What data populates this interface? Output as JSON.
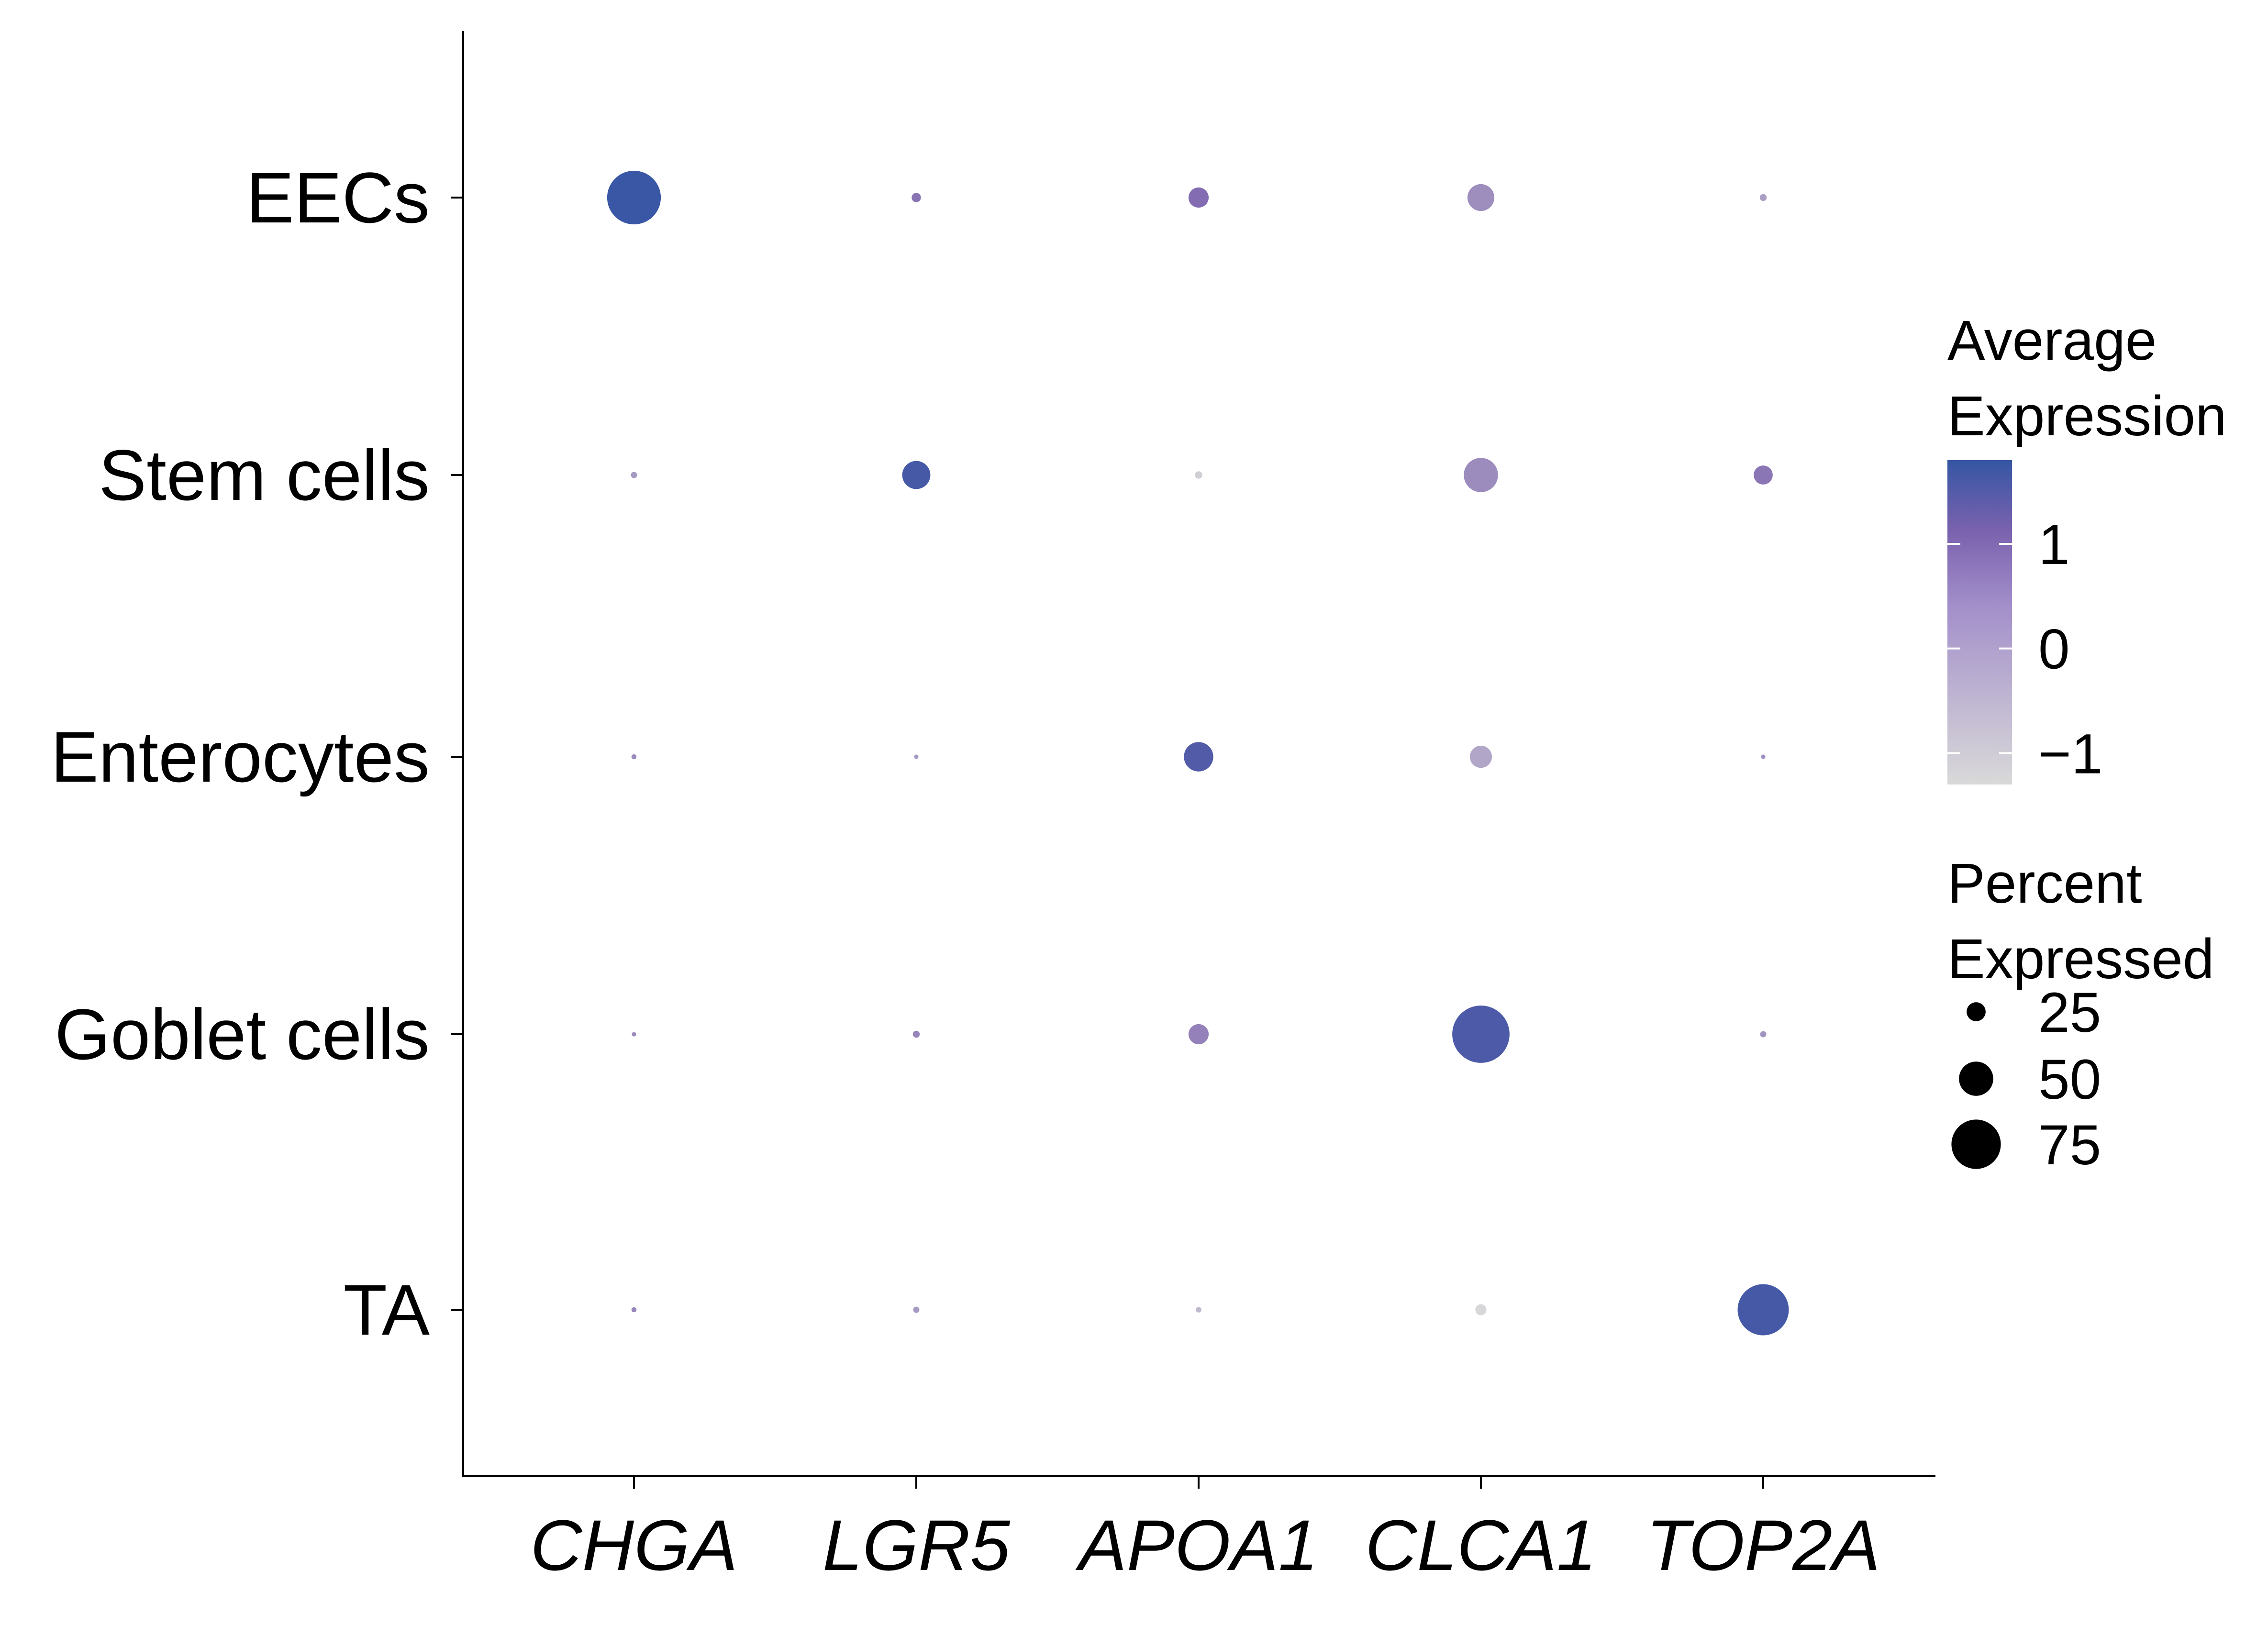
{
  "chart_data": {
    "type": "dotplot",
    "title": "",
    "xlabel": "",
    "ylabel": "",
    "categories_x": [
      "CHGA",
      "LGR5",
      "APOA1",
      "CLCA1",
      "TOP2A"
    ],
    "categories_y": [
      "EECs",
      "Stem cells",
      "Enterocytes",
      "Goblet cells",
      "TA"
    ],
    "color_legend": {
      "title_lines": [
        "Average",
        "Expression"
      ],
      "range": [
        -1.3,
        1.8
      ],
      "ticks": [
        {
          "value": 1,
          "label": "1"
        },
        {
          "value": 0,
          "label": "0"
        },
        {
          "value": -1,
          "label": "−1"
        }
      ],
      "colors": {
        "low": "#d9d9d9",
        "mid": "#7b62ae",
        "high": "#3556a4"
      }
    },
    "size_legend": {
      "title_lines": [
        "Percent",
        "Expressed"
      ],
      "entries": [
        {
          "value": 25,
          "label": "25"
        },
        {
          "value": 50,
          "label": "50"
        },
        {
          "value": 75,
          "label": "75"
        }
      ]
    },
    "points": [
      {
        "y": "EECs",
        "x": "CHGA",
        "pct": 82,
        "avg": 1.75
      },
      {
        "y": "EECs",
        "x": "LGR5",
        "pct": 9,
        "avg": 0.6
      },
      {
        "y": "EECs",
        "x": "APOA1",
        "pct": 27,
        "avg": 0.75
      },
      {
        "y": "EECs",
        "x": "CLCA1",
        "pct": 38,
        "avg": 0.1
      },
      {
        "y": "EECs",
        "x": "TOP2A",
        "pct": 5,
        "avg": -0.2
      },
      {
        "y": "Stem cells",
        "x": "CHGA",
        "pct": 4,
        "avg": -0.1
      },
      {
        "y": "Stem cells",
        "x": "LGR5",
        "pct": 40,
        "avg": 1.6
      },
      {
        "y": "Stem cells",
        "x": "APOA1",
        "pct": 6,
        "avg": -1.1
      },
      {
        "y": "Stem cells",
        "x": "CLCA1",
        "pct": 50,
        "avg": 0.15
      },
      {
        "y": "Stem cells",
        "x": "TOP2A",
        "pct": 25,
        "avg": 0.55
      },
      {
        "y": "Enterocytes",
        "x": "CHGA",
        "pct": 2,
        "avg": 0.2
      },
      {
        "y": "Enterocytes",
        "x": "LGR5",
        "pct": 1,
        "avg": -0.1
      },
      {
        "y": "Enterocytes",
        "x": "APOA1",
        "pct": 42,
        "avg": 1.45
      },
      {
        "y": "Enterocytes",
        "x": "CLCA1",
        "pct": 30,
        "avg": -0.35
      },
      {
        "y": "Enterocytes",
        "x": "TOP2A",
        "pct": 1,
        "avg": 0.1
      },
      {
        "y": "Goblet cells",
        "x": "CHGA",
        "pct": 1,
        "avg": 0.1
      },
      {
        "y": "Goblet cells",
        "x": "LGR5",
        "pct": 5,
        "avg": 0.3
      },
      {
        "y": "Goblet cells",
        "x": "APOA1",
        "pct": 27,
        "avg": 0.35
      },
      {
        "y": "Goblet cells",
        "x": "CLCA1",
        "pct": 88,
        "avg": 1.5
      },
      {
        "y": "Goblet cells",
        "x": "TOP2A",
        "pct": 4,
        "avg": 0.0
      },
      {
        "y": "TA",
        "x": "CHGA",
        "pct": 2,
        "avg": 0.3
      },
      {
        "y": "TA",
        "x": "LGR5",
        "pct": 4,
        "avg": -0.1
      },
      {
        "y": "TA",
        "x": "APOA1",
        "pct": 3,
        "avg": -0.7
      },
      {
        "y": "TA",
        "x": "CLCA1",
        "pct": 12,
        "avg": -1.25
      },
      {
        "y": "TA",
        "x": "TOP2A",
        "pct": 78,
        "avg": 1.6
      }
    ]
  }
}
